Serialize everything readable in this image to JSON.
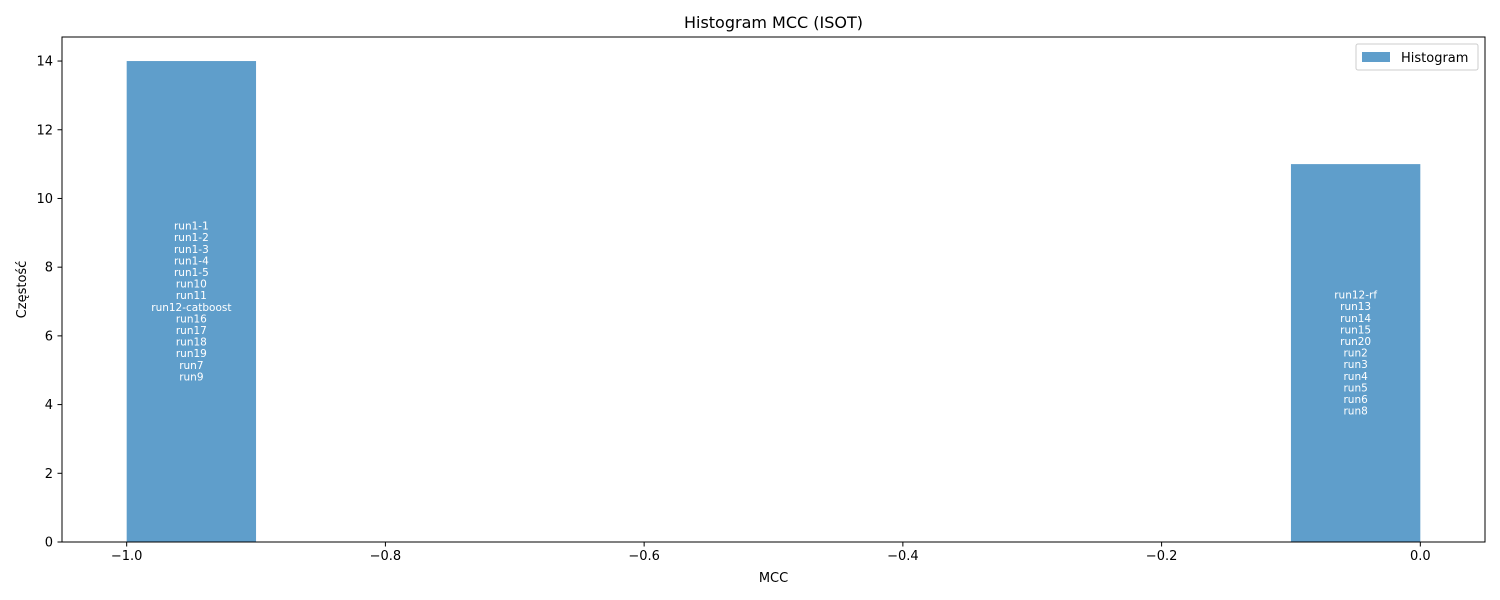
{
  "chart_data": {
    "type": "bar",
    "title": "Histogram MCC (ISOT)",
    "xlabel": "MCC",
    "ylabel": "Częstość",
    "xlim": [
      -1.05,
      0.05
    ],
    "ylim": [
      0,
      14.7
    ],
    "xticks": [
      -1.0,
      -0.8,
      -0.6,
      -0.4,
      -0.2,
      0.0
    ],
    "xtick_labels": [
      "−1.0",
      "−0.8",
      "−0.6",
      "−0.4",
      "−0.2",
      "0.0"
    ],
    "yticks": [
      0,
      2,
      4,
      6,
      8,
      10,
      12,
      14
    ],
    "ytick_labels": [
      "0",
      "2",
      "4",
      "6",
      "8",
      "10",
      "12",
      "14"
    ],
    "bar_color": "#5f9ecb",
    "legend": {
      "label": "Histogram",
      "position": "top-right"
    },
    "grid": false,
    "series": [
      {
        "name": "Histogram",
        "bins": [
          {
            "x_start": -1.0,
            "x_end": -0.9,
            "count": 14,
            "labels": [
              "run1-1",
              "run1-2",
              "run1-3",
              "run1-4",
              "run1-5",
              "run10",
              "run11",
              "run12-catboost",
              "run16",
              "run17",
              "run18",
              "run19",
              "run7",
              "run9"
            ]
          },
          {
            "x_start": -0.1,
            "x_end": 0.0,
            "count": 11,
            "labels": [
              "run12-rf",
              "run13",
              "run14",
              "run15",
              "run20",
              "run2",
              "run3",
              "run4",
              "run5",
              "run6",
              "run8"
            ]
          }
        ]
      }
    ]
  }
}
